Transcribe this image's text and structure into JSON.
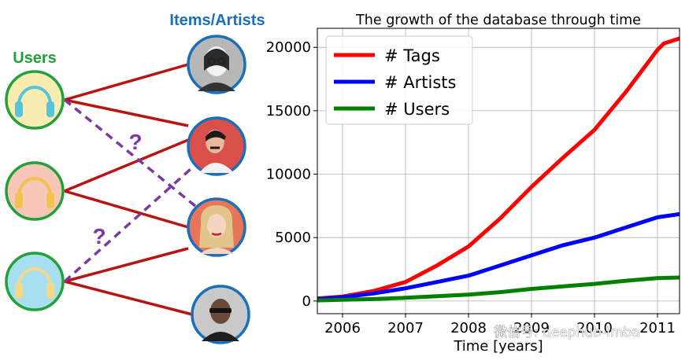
{
  "graph": {
    "users_label": "Users",
    "items_label": "Items/Artists",
    "question_mark": "?",
    "user_nodes": [
      {
        "name": "user-1",
        "ring": "#22a03a",
        "fill": "#f8ecb0",
        "headphone": "#58c4dc"
      },
      {
        "name": "user-2",
        "ring": "#22a03a",
        "fill": "#f7c6b8",
        "headphone": "#f0c34e"
      },
      {
        "name": "user-3",
        "ring": "#22a03a",
        "fill": "#a8dff0",
        "headphone": "#f3d88a"
      }
    ],
    "item_nodes": [
      {
        "name": "artist-1",
        "ring": "#1a6fb8",
        "fill": "#b7b7b7"
      },
      {
        "name": "artist-2",
        "ring": "#1a6fb8",
        "fill": "#d9504a"
      },
      {
        "name": "artist-3",
        "ring": "#1a6fb8",
        "fill": "#e8745a"
      },
      {
        "name": "artist-4",
        "ring": "#1a6fb8",
        "fill": "#c9c9c9"
      }
    ],
    "edge_color": "#b81414",
    "dashed_color": "#7b3aa0"
  },
  "chart_data": {
    "type": "line",
    "title": "The growth of the database through time",
    "xlabel": "Time [years]",
    "ylabel": "",
    "xlim": [
      2005.6,
      2011.35
    ],
    "ylim": [
      -1000,
      21500
    ],
    "x_ticks": [
      "2006",
      "2007",
      "2008",
      "2009",
      "2010",
      "2011"
    ],
    "y_ticks": [
      "0",
      "5000",
      "10000",
      "15000",
      "20000"
    ],
    "grid": true,
    "legend_position": "top-left",
    "series": [
      {
        "name": "# Tags",
        "color": "#ff0000",
        "x": [
          2005.6,
          2006.0,
          2006.5,
          2007.0,
          2007.5,
          2008.0,
          2008.5,
          2009.0,
          2009.5,
          2010.0,
          2010.5,
          2011.0,
          2011.1,
          2011.35
        ],
        "y": [
          200,
          350,
          800,
          1500,
          2800,
          4300,
          6500,
          9000,
          11300,
          13500,
          16500,
          19800,
          20300,
          20700
        ]
      },
      {
        "name": "# Artists",
        "color": "#0000ff",
        "x": [
          2005.6,
          2006.0,
          2006.5,
          2007.0,
          2007.5,
          2008.0,
          2008.5,
          2009.0,
          2009.5,
          2010.0,
          2010.5,
          2011.0,
          2011.35
        ],
        "y": [
          150,
          300,
          600,
          1000,
          1500,
          2000,
          2800,
          3600,
          4400,
          5000,
          5800,
          6600,
          6850
        ]
      },
      {
        "name": "# Users",
        "color": "#008000",
        "x": [
          2005.6,
          2006.0,
          2006.5,
          2007.0,
          2007.5,
          2008.0,
          2008.5,
          2009.0,
          2009.5,
          2010.0,
          2010.5,
          2011.0,
          2011.35
        ],
        "y": [
          50,
          100,
          150,
          250,
          380,
          500,
          700,
          950,
          1150,
          1350,
          1600,
          1800,
          1850
        ]
      }
    ]
  },
  "watermark": "微信号: deephub-imba"
}
